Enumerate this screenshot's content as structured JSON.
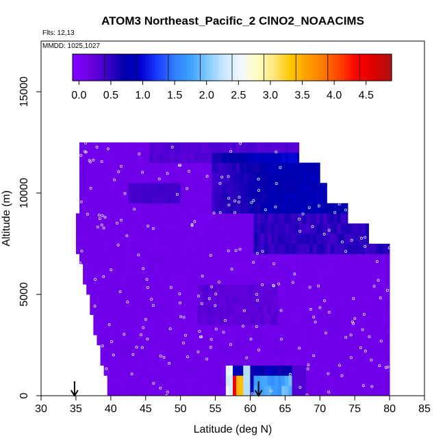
{
  "chart_data": {
    "type": "heatmap",
    "title": "ATOM3 Northeast_Pacific_2 ClNO2_NOAACIMS",
    "subtitle_flights": "Flts: 12,13",
    "subtitle_dates": "MMDD: 1025,1027",
    "xlabel": "Latitude (deg N)",
    "ylabel": "Altitude (m)",
    "xlim": [
      30,
      85
    ],
    "ylim": [
      0,
      17500
    ],
    "x_ticks": [
      "30",
      "35",
      "40",
      "45",
      "50",
      "55",
      "60",
      "65",
      "70",
      "75",
      "80",
      "85"
    ],
    "y_ticks": [
      "0",
      "5000",
      "10000",
      "15000"
    ],
    "colorbar": {
      "range": [
        -0.1,
        4.9
      ],
      "ticks": [
        "0.0",
        "0.5",
        "1.0",
        "1.5",
        "2.0",
        "2.5",
        "3.0",
        "3.5",
        "4.0",
        "4.5"
      ],
      "colors": [
        "#7f00ff",
        "#6a00e0",
        "#3c00c8",
        "#0000aa",
        "#0000cc",
        "#1a3cff",
        "#2e7dff",
        "#3ca0ff",
        "#80c8ff",
        "#c8e6ff",
        "#f0f8ff",
        "#ffffc0",
        "#ffe680",
        "#ffc800",
        "#ffa000",
        "#ff7800",
        "#ff4000",
        "#ff0000",
        "#e00000",
        "#b01010"
      ]
    },
    "flight_markers_lat": [
      34.8,
      61.2
    ],
    "legend_placement": "top",
    "grid": false
  }
}
